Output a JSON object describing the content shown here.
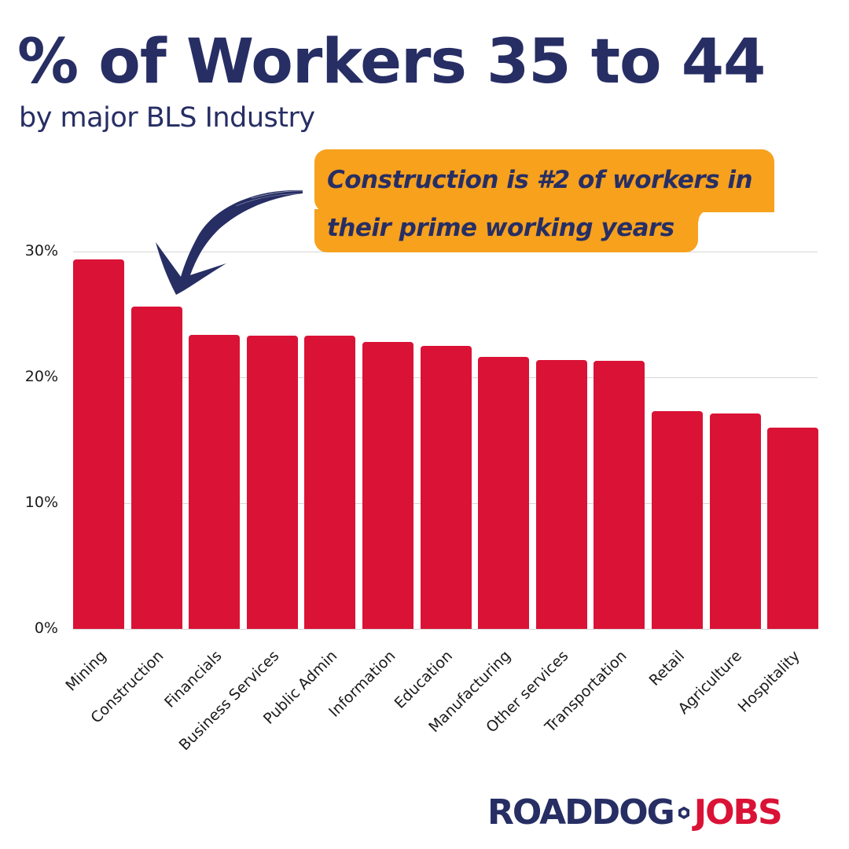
{
  "header": {
    "title": "% of Workers 35 to 44",
    "subtitle": "by major BLS Industry"
  },
  "callout": {
    "line1": "Construction is #2 of workers in",
    "line2": "their prime working years",
    "bg_color": "#f7a11d",
    "arrow_icon": "curved-arrow-down-left-icon"
  },
  "logo": {
    "part1": "ROADDOG",
    "part2": "JOBS",
    "separator_icon": "hex-nut-icon",
    "colors": {
      "part1": "#272e64",
      "part2": "#da1236"
    }
  },
  "colors": {
    "title": "#272e64",
    "bar": "#da1236",
    "gridline": "#d6d6d6"
  },
  "chart_data": {
    "type": "bar",
    "title": "% of Workers 35 to 44",
    "subtitle": "by major BLS Industry",
    "xlabel": "",
    "ylabel": "",
    "ylim": [
      0,
      30
    ],
    "yticks": [
      "0%",
      "10%",
      "20%",
      "30%"
    ],
    "grid": true,
    "legend": null,
    "categories": [
      "Mining",
      "Construction",
      "Financials",
      "Business Services",
      "Public Admin",
      "Information",
      "Education",
      "Manufacturing",
      "Other services",
      "Transportation",
      "Retail",
      "Agriculture",
      "Hospitality"
    ],
    "values": [
      29.4,
      25.6,
      23.4,
      23.3,
      23.3,
      22.8,
      22.5,
      21.6,
      21.4,
      21.3,
      17.3,
      17.1,
      16.0
    ],
    "annotations": [
      "Construction is #2 of workers in their prime working years"
    ]
  }
}
